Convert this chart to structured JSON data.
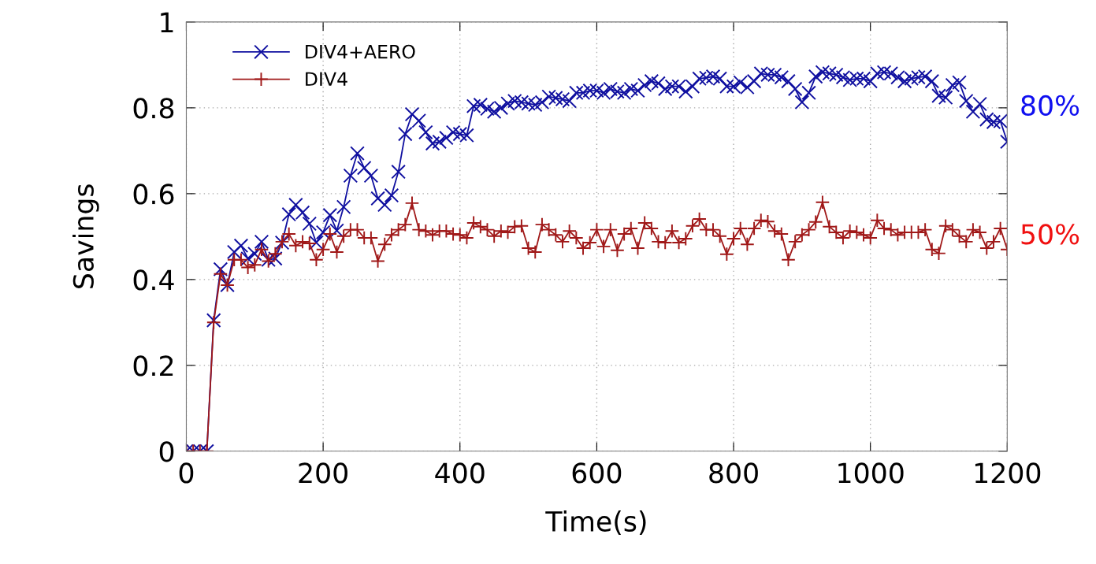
{
  "chart_data": {
    "type": "line",
    "xlabel": "Time(s)",
    "ylabel": "Savings",
    "x": [
      0,
      10,
      20,
      30,
      40,
      50,
      60,
      70,
      80,
      90,
      100,
      110,
      120,
      130,
      140,
      150,
      160,
      170,
      180,
      190,
      200,
      210,
      220,
      230,
      240,
      250,
      260,
      270,
      280,
      290,
      300,
      310,
      320,
      330,
      340,
      350,
      360,
      370,
      380,
      390,
      400,
      410,
      420,
      430,
      440,
      450,
      460,
      470,
      480,
      490,
      500,
      510,
      520,
      530,
      540,
      550,
      560,
      570,
      580,
      590,
      600,
      610,
      620,
      630,
      640,
      650,
      660,
      670,
      680,
      690,
      700,
      710,
      720,
      730,
      740,
      750,
      760,
      770,
      780,
      790,
      800,
      810,
      820,
      830,
      840,
      850,
      860,
      870,
      880,
      890,
      900,
      910,
      920,
      930,
      940,
      950,
      960,
      970,
      980,
      990,
      1000,
      1010,
      1020,
      1030,
      1040,
      1050,
      1060,
      1070,
      1080,
      1090,
      1100,
      1110,
      1120,
      1130,
      1140,
      1150,
      1160,
      1170,
      1180,
      1190,
      1200
    ],
    "series": [
      {
        "name": "DIV4+AERO",
        "color": "#1010a0",
        "marker": "cross",
        "values": [
          0,
          0,
          0,
          0,
          0.305,
          0.424,
          0.387,
          0.464,
          0.479,
          0.449,
          0.46,
          0.488,
          0.446,
          0.449,
          0.486,
          0.552,
          0.574,
          0.556,
          0.53,
          0.486,
          0.51,
          0.55,
          0.514,
          0.569,
          0.642,
          0.694,
          0.66,
          0.642,
          0.589,
          0.574,
          0.596,
          0.651,
          0.739,
          0.785,
          0.77,
          0.743,
          0.717,
          0.721,
          0.73,
          0.743,
          0.739,
          0.736,
          0.804,
          0.807,
          0.798,
          0.791,
          0.8,
          0.81,
          0.816,
          0.813,
          0.81,
          0.807,
          0.813,
          0.826,
          0.823,
          0.82,
          0.816,
          0.835,
          0.835,
          0.84,
          0.84,
          0.835,
          0.844,
          0.838,
          0.835,
          0.844,
          0.84,
          0.853,
          0.862,
          0.857,
          0.844,
          0.85,
          0.85,
          0.838,
          0.85,
          0.868,
          0.87,
          0.873,
          0.868,
          0.85,
          0.85,
          0.859,
          0.848,
          0.862,
          0.88,
          0.877,
          0.877,
          0.871,
          0.862,
          0.844,
          0.813,
          0.835,
          0.873,
          0.883,
          0.88,
          0.877,
          0.871,
          0.865,
          0.868,
          0.868,
          0.862,
          0.88,
          0.883,
          0.88,
          0.871,
          0.862,
          0.868,
          0.871,
          0.873,
          0.862,
          0.828,
          0.824,
          0.853,
          0.859,
          0.816,
          0.791,
          0.809,
          0.773,
          0.767,
          0.769,
          0.721
        ]
      },
      {
        "name": "DIV4",
        "color": "#a01818",
        "marker": "plus",
        "values": [
          0,
          0,
          0,
          0,
          0.3,
          0.413,
          0.387,
          0.446,
          0.446,
          0.428,
          0.434,
          0.47,
          0.443,
          0.46,
          0.488,
          0.506,
          0.479,
          0.488,
          0.484,
          0.446,
          0.47,
          0.506,
          0.464,
          0.501,
          0.516,
          0.516,
          0.497,
          0.497,
          0.443,
          0.482,
          0.504,
          0.516,
          0.528,
          0.578,
          0.516,
          0.513,
          0.504,
          0.513,
          0.513,
          0.506,
          0.504,
          0.497,
          0.532,
          0.523,
          0.516,
          0.501,
          0.513,
          0.51,
          0.523,
          0.525,
          0.473,
          0.464,
          0.528,
          0.516,
          0.504,
          0.488,
          0.513,
          0.497,
          0.473,
          0.486,
          0.516,
          0.477,
          0.516,
          0.468,
          0.506,
          0.519,
          0.473,
          0.532,
          0.519,
          0.488,
          0.486,
          0.513,
          0.486,
          0.495,
          0.525,
          0.541,
          0.516,
          0.516,
          0.501,
          0.459,
          0.495,
          0.519,
          0.482,
          0.519,
          0.538,
          0.535,
          0.513,
          0.506,
          0.446,
          0.488,
          0.504,
          0.516,
          0.534,
          0.58,
          0.523,
          0.51,
          0.497,
          0.513,
          0.51,
          0.504,
          0.497,
          0.538,
          0.519,
          0.516,
          0.504,
          0.51,
          0.51,
          0.51,
          0.516,
          0.47,
          0.461,
          0.525,
          0.516,
          0.501,
          0.488,
          0.516,
          0.51,
          0.473,
          0.488,
          0.519,
          0.47
        ]
      }
    ],
    "annotations": [
      "80%",
      "50%"
    ],
    "xlim": [
      0,
      1200
    ],
    "ylim": [
      0,
      1
    ],
    "xticks": [
      0,
      200,
      400,
      600,
      800,
      1000,
      1200
    ],
    "yticks": [
      0,
      0.2,
      0.4,
      0.6,
      0.8,
      1
    ],
    "grid": true,
    "legend": "top left",
    "line_style": "solid"
  }
}
